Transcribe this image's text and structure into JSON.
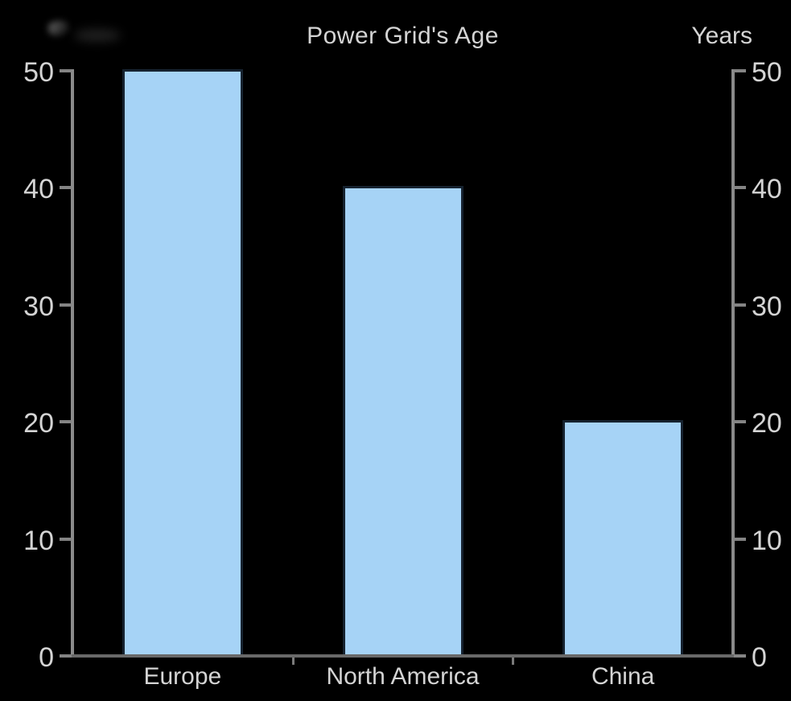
{
  "page": {
    "background": "#000000"
  },
  "chart_data": {
    "type": "bar",
    "title": "Power Grid's Age",
    "right_axis_label": "Years",
    "categories": [
      "Europe",
      "North America",
      "China"
    ],
    "values": [
      50,
      40,
      20
    ],
    "ylim": [
      0,
      50
    ],
    "yticks": [
      0,
      10,
      20,
      30,
      40,
      50
    ],
    "dual_y_axis": true,
    "grid": false,
    "legend": false,
    "colors": {
      "bar_fill": "#a6d3f6",
      "bar_border": "#16222f",
      "axis_line": "#8a8a8a",
      "baseline": "#696969",
      "text": "#d4d4d4",
      "background": "#000000"
    }
  }
}
